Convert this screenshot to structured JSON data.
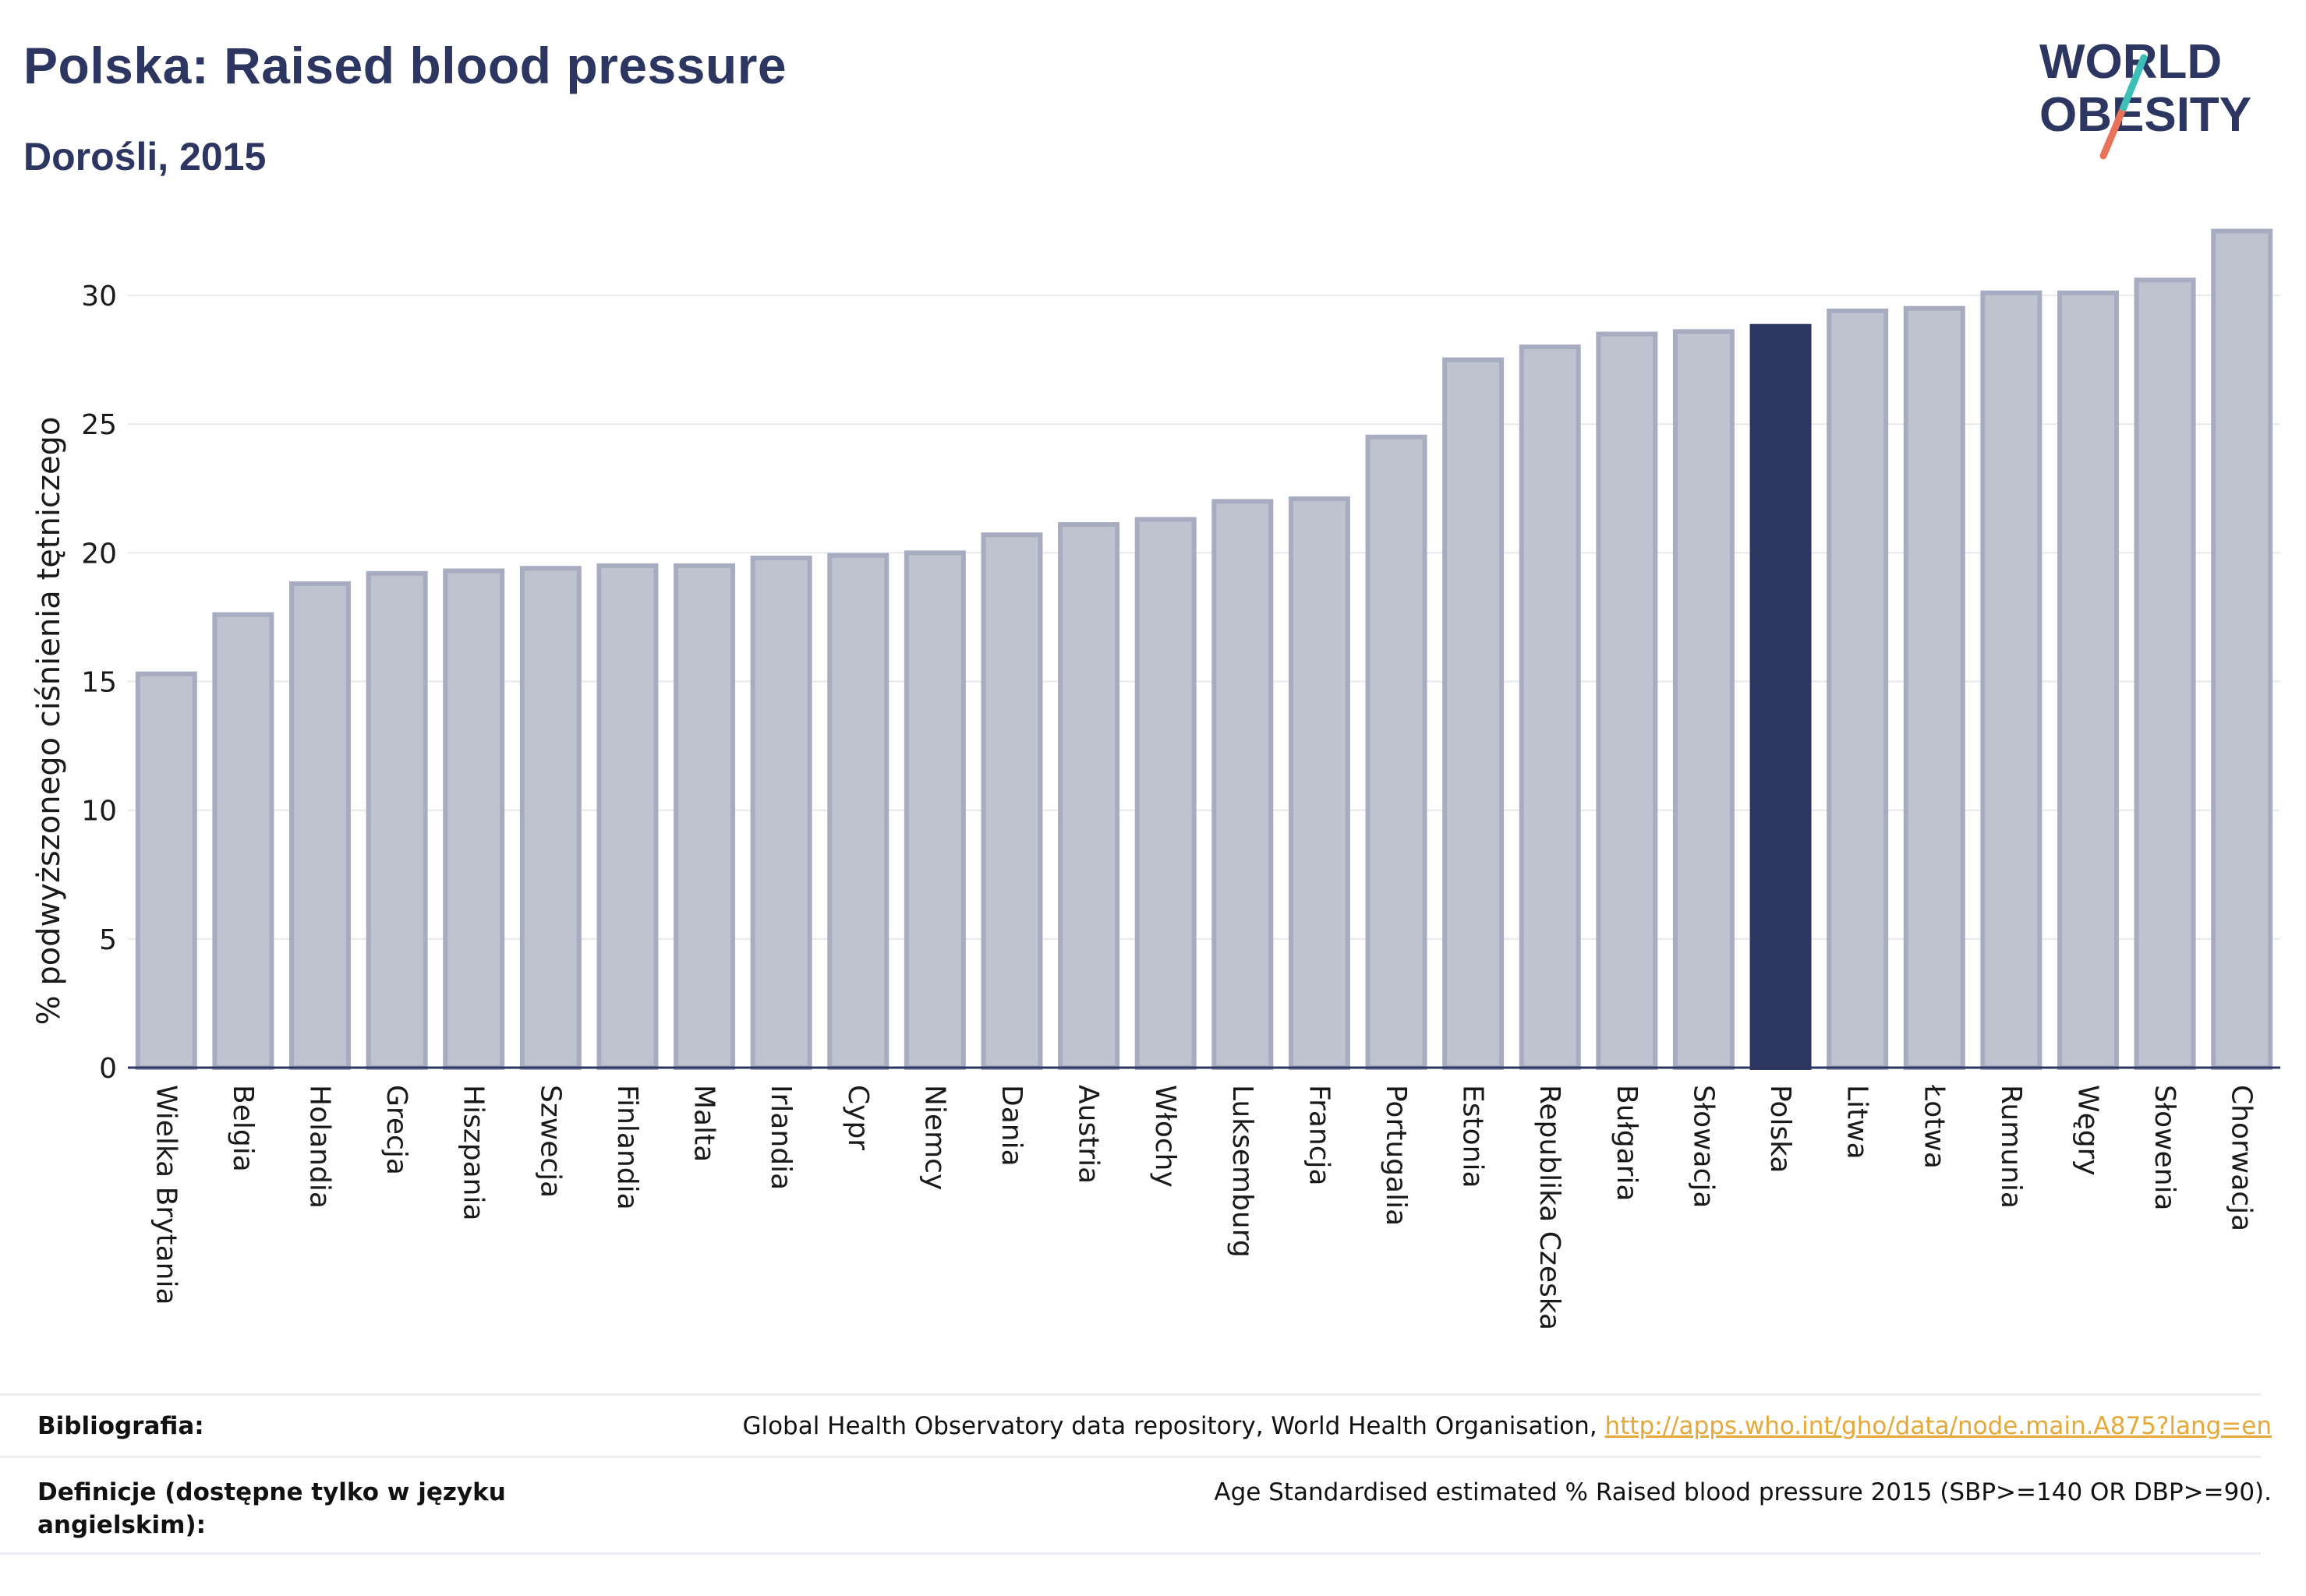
{
  "header": {
    "title": "Polska: Raised blood pressure",
    "subtitle": "Dorośli, 2015"
  },
  "logo": {
    "line1": "WORLD",
    "line2": "OBESITY",
    "colors": {
      "text": "#2d3561",
      "slash_top": "#3dbfb8",
      "slash_bottom": "#e8735a"
    }
  },
  "colors": {
    "bar": "#bfc2cf",
    "bar_border": "#a7acc0",
    "highlight": "#2d3561",
    "grid": "#e6e8ee",
    "axis": "#2d3561"
  },
  "chart_data": {
    "type": "bar",
    "categories": [
      "Wielka Brytania",
      "Belgia",
      "Holandia",
      "Grecja",
      "Hiszpania",
      "Szwecja",
      "Finlandia",
      "Malta",
      "Irlandia",
      "Cypr",
      "Niemcy",
      "Dania",
      "Austria",
      "Włochy",
      "Luksemburg",
      "Francja",
      "Portugalia",
      "Estonia",
      "Republika Czeska",
      "Bułgaria",
      "Słowacja",
      "Polska",
      "Litwa",
      "Łotwa",
      "Rumunia",
      "Węgry",
      "Słowenia",
      "Chorwacja"
    ],
    "values": [
      15.3,
      17.6,
      18.8,
      19.2,
      19.3,
      19.4,
      19.5,
      19.5,
      19.8,
      19.9,
      20.0,
      20.7,
      21.1,
      21.3,
      22.0,
      22.1,
      24.5,
      27.5,
      28.0,
      28.5,
      28.6,
      28.8,
      29.4,
      29.5,
      30.1,
      30.1,
      30.6,
      32.5
    ],
    "highlight": "Polska",
    "ylabel": "% podwyższonego ciśnienia tętniczego",
    "xlabel": "",
    "ylim": [
      0,
      33
    ],
    "yticks": [
      0,
      5,
      10,
      15,
      20,
      25,
      30
    ],
    "grid": true,
    "legend": "none"
  },
  "footer": {
    "bibliography_label": "Bibliografia:",
    "bibliography_text": "Global Health Observatory data repository, World Health Organisation, ",
    "bibliography_link": "http://apps.who.int/gho/data/node.main.A875?lang=en",
    "definitions_label_line1": "Definicje (dostępne tylko w języku",
    "definitions_label_line2": "angielskim):",
    "definitions_text": "Age Standardised estimated % Raised blood pressure 2015 (SBP>=140 OR DBP>=90)."
  }
}
